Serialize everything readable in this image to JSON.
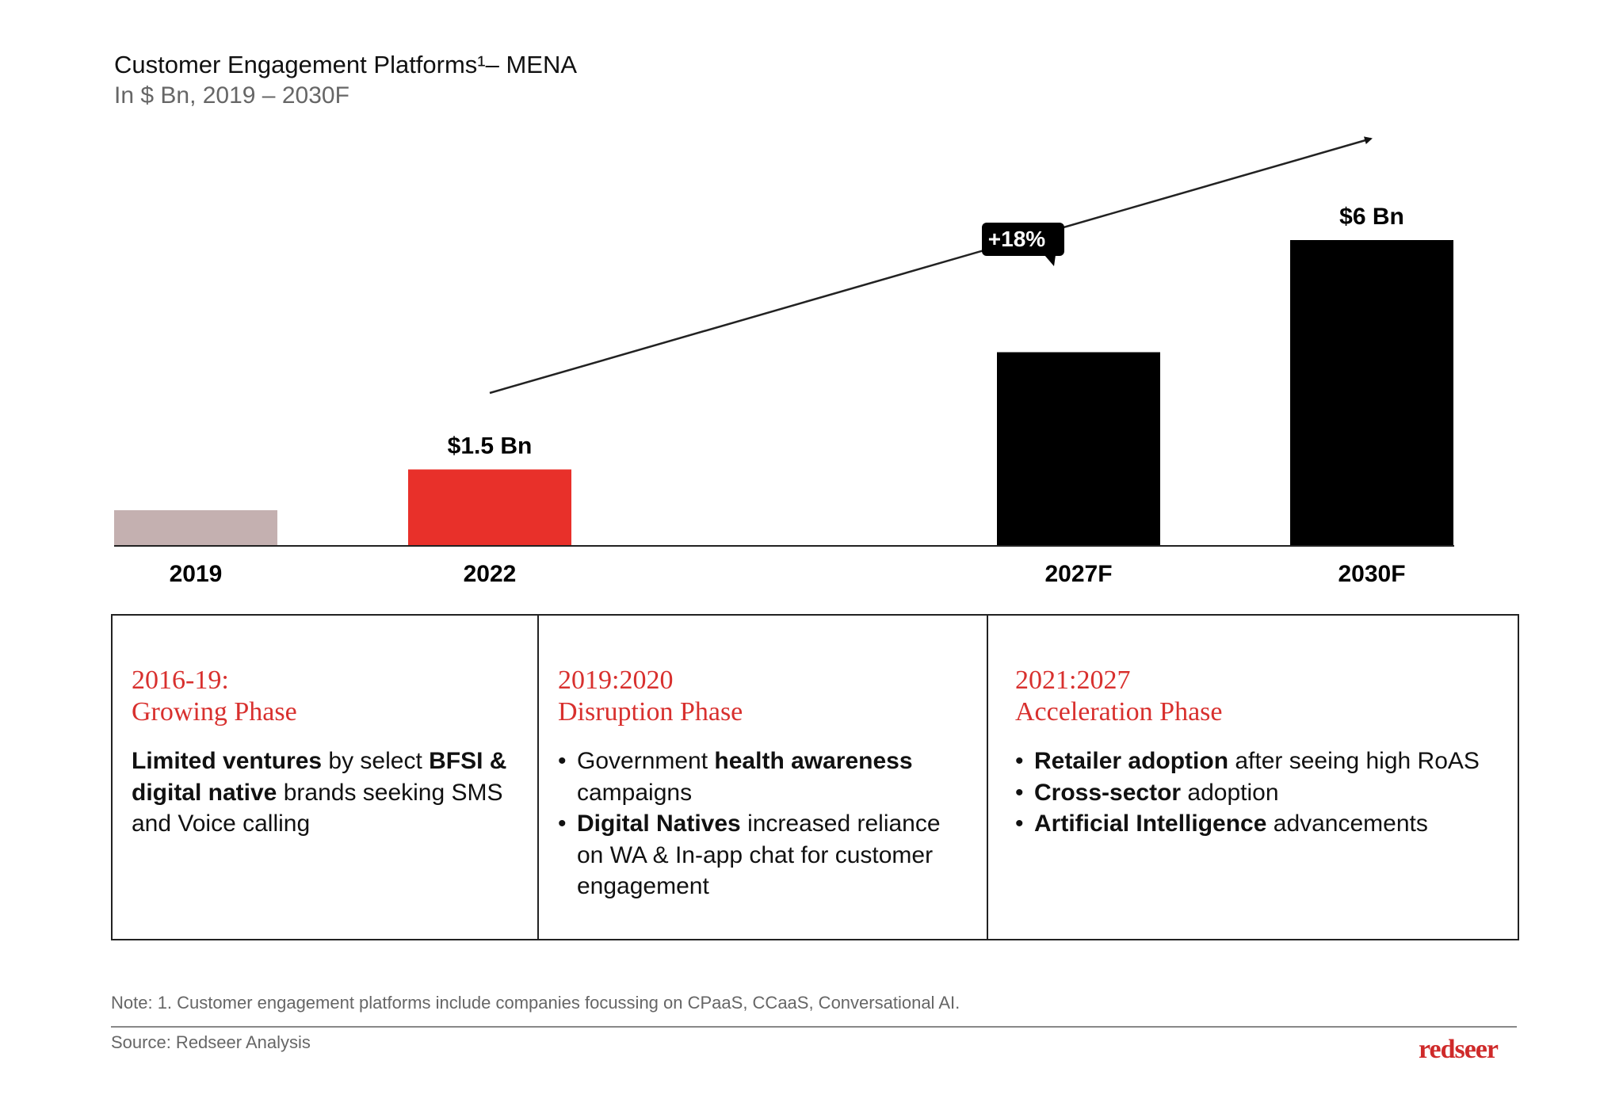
{
  "header": {
    "title": "Customer Engagement Platforms¹– MENA",
    "subtitle": "In $ Bn, 2019 – 2030F"
  },
  "chart_data": {
    "type": "bar",
    "categories": [
      "2019",
      "2022",
      "2027F",
      "2030F"
    ],
    "values": [
      0.7,
      1.5,
      3.8,
      6
    ],
    "data_labels": [
      "",
      "$1.5 Bn",
      "",
      "$6 Bn"
    ],
    "bar_colors": [
      "#c4b0b0",
      "#e8302a",
      "#000000",
      "#000000"
    ],
    "ylim": [
      0,
      6.4
    ],
    "grid": false,
    "annotation": {
      "label": "+18%",
      "from": "2022",
      "to": "2030F",
      "type": "growth-arrow"
    },
    "xlabel": "",
    "ylabel": ""
  },
  "phases": [
    {
      "period": "2016-19:",
      "name": "Growing Phase",
      "bulleted": false,
      "items": [
        [
          {
            "t": "Limited ventures",
            "b": true
          },
          {
            "t": " by select ",
            "b": false
          },
          {
            "t": "BFSI & digital native",
            "b": true
          },
          {
            "t": " brands seeking SMS and Voice calling",
            "b": false
          }
        ]
      ]
    },
    {
      "period": "2019:2020",
      "name": "Disruption Phase",
      "bulleted": true,
      "items": [
        [
          {
            "t": "Government ",
            "b": false
          },
          {
            "t": "health awareness",
            "b": true
          },
          {
            "t": " campaigns",
            "b": false
          }
        ],
        [
          {
            "t": "Digital Natives",
            "b": true
          },
          {
            "t": " increased reliance on WA & In-app chat for customer engagement",
            "b": false
          }
        ]
      ]
    },
    {
      "period": "2021:2027",
      "name": "Acceleration Phase",
      "bulleted": true,
      "items": [
        [
          {
            "t": "Retailer adoption",
            "b": true
          },
          {
            "t": " after seeing high RoAS",
            "b": false
          }
        ],
        [
          {
            "t": "Cross-sector",
            "b": true
          },
          {
            "t": " adoption",
            "b": false
          }
        ],
        [
          {
            "t": "Artificial Intelligence",
            "b": true
          },
          {
            "t": " advancements",
            "b": false
          }
        ]
      ]
    }
  ],
  "footer": {
    "note": "Note: 1. Customer engagement platforms include companies focussing on CPaaS, CCaaS, Conversational AI.",
    "source": "Source: Redseer Analysis",
    "logo": "redseer"
  }
}
